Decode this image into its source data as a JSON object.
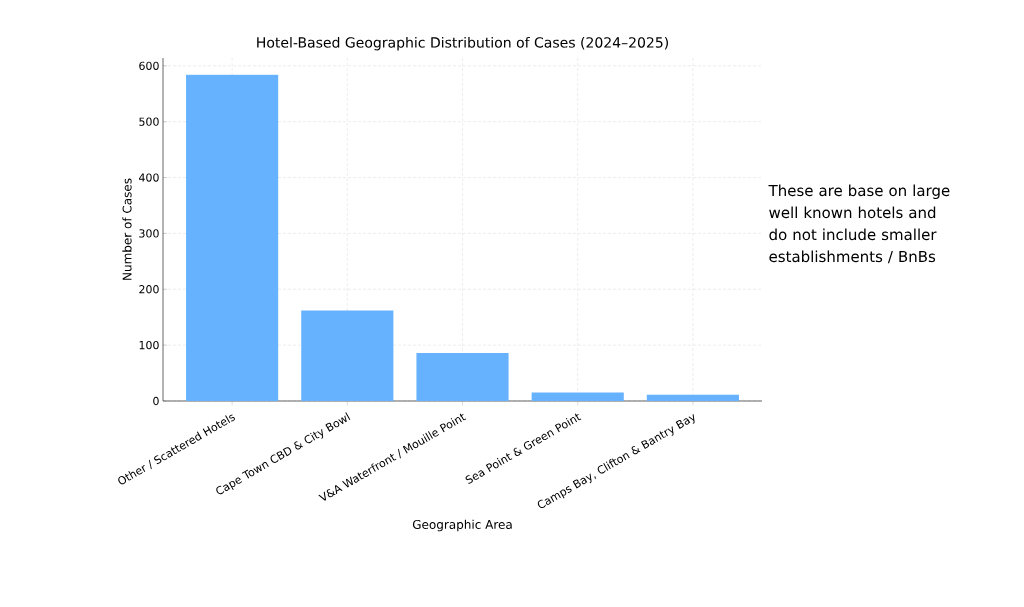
{
  "chart_data": {
    "type": "bar",
    "title": "Hotel-Based Geographic Distribution of Cases (2024–2025)",
    "xlabel": "Geographic Area",
    "ylabel": "Number of Cases",
    "categories": [
      "Other / Scattered Hotels",
      "Cape Town CBD & City Bowl",
      "V&A Waterfront / Mouille Point",
      "Sea Point & Green Point",
      "Camps Bay, Clifton & Bantry Bay"
    ],
    "values": [
      584,
      162,
      86,
      15,
      11
    ],
    "color": "#66b2ff",
    "ylim": [
      0,
      614
    ],
    "yticks": [
      0,
      100,
      200,
      300,
      400,
      500,
      600
    ],
    "grid": true,
    "annotations": [
      "These are base on large well known hotels and do not include smaller establishments / BnBs"
    ]
  }
}
